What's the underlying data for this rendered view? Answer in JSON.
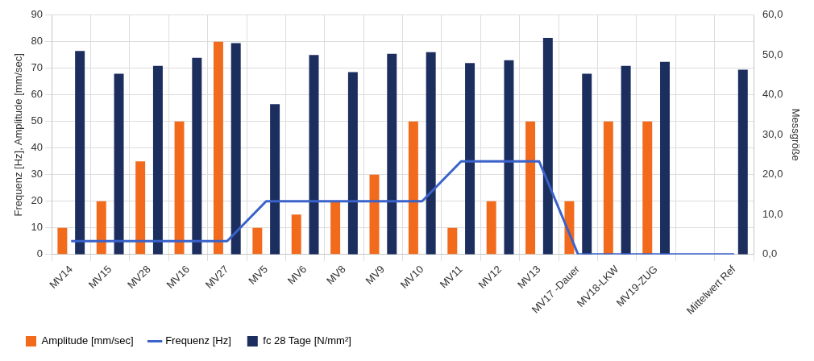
{
  "chart_data": {
    "type": "bar",
    "ylabel": "Frequenz [Hz], Amplitude [mm/sec]",
    "y2label": "Messgröße",
    "categories": [
      "MV14",
      "MV15",
      "MV28",
      "MV16",
      "MV27",
      "MV5",
      "MV6",
      "MV8",
      "MV9",
      "MV10",
      "MV11",
      "MV12",
      "MV13",
      "MV17 -Dauer",
      "MV18-LKW",
      "MV19-ZUG",
      null,
      "Mittelwert Ref"
    ],
    "series": [
      {
        "name": "Amplitude [mm/sec]",
        "color": "#f26b1d",
        "values": [
          10,
          20,
          35,
          50,
          80,
          10,
          15,
          20,
          30,
          50,
          10,
          20,
          50,
          20,
          50,
          50,
          null,
          null
        ]
      },
      {
        "name": "Frequenz [Hz]",
        "type": "line",
        "color": "#3a62c9",
        "marker": "none",
        "line_style": "solid",
        "values": [
          5,
          5,
          5,
          5,
          5,
          20,
          20,
          20,
          20,
          20,
          35,
          35,
          35,
          0,
          0,
          0,
          0,
          0
        ]
      },
      {
        "name": "fc 28 Tage [N/mm²]",
        "axis": "y2",
        "color": "#1c2e5e",
        "values": [
          51.0,
          45.3,
          47.3,
          49.3,
          53.0,
          37.7,
          50.0,
          45.7,
          50.3,
          50.7,
          48.0,
          48.7,
          54.3,
          45.3,
          47.3,
          48.3,
          null,
          46.3
        ]
      }
    ],
    "ylim": [
      0,
      90
    ],
    "yticks": [
      0,
      10,
      20,
      30,
      40,
      50,
      60,
      70,
      80,
      90
    ],
    "y2lim": [
      0,
      60
    ],
    "y2ticks": [
      {
        "value": 0,
        "label": "0,0"
      },
      {
        "value": 10,
        "label": "10,0"
      },
      {
        "value": 20,
        "label": "20,0"
      },
      {
        "value": 30,
        "label": "30,0"
      },
      {
        "value": 40,
        "label": "40,0"
      },
      {
        "value": 50,
        "label": "50,0"
      },
      {
        "value": 60,
        "label": "60,0"
      }
    ],
    "grid": true,
    "legend": "bottom"
  }
}
